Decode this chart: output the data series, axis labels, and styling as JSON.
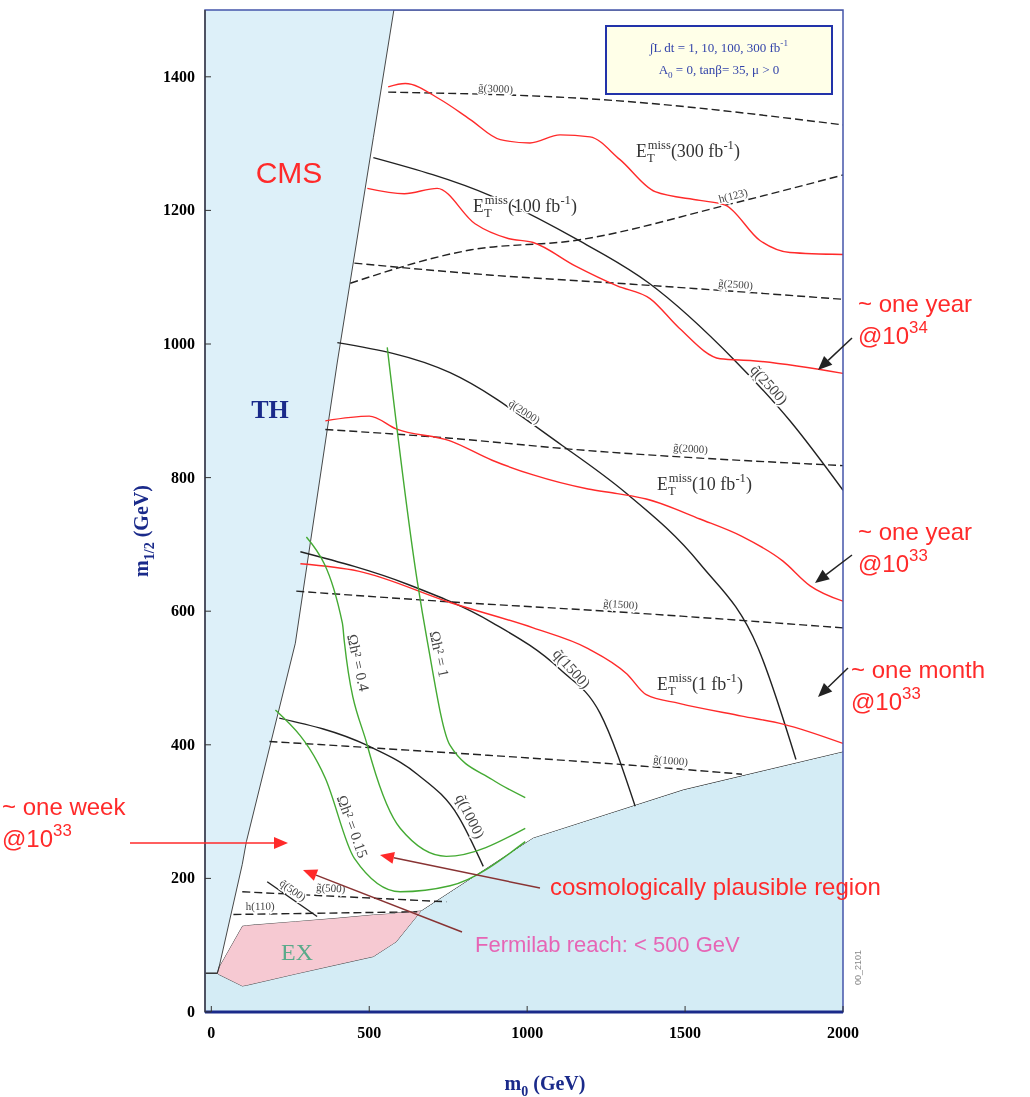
{
  "chart_data": {
    "type": "line",
    "xlabel": "m$_{0}$ (GeV)",
    "ylabel": "m$_{1/2}$ (GeV)",
    "xlim": [
      -20,
      2000
    ],
    "ylim": [
      0,
      1500
    ],
    "xticks": [
      0,
      500,
      1000,
      1500,
      2000
    ],
    "yticks": [
      0,
      200,
      400,
      600,
      800,
      1000,
      1200,
      1400
    ],
    "line_style": "solid",
    "stacked": true,
    "series": [
      {
        "type": "area",
        "color": "#d4ecf5",
        "x": [
          -20,
          19,
          25,
          98,
          111,
          266,
          399,
          513,
          578,
          585,
          665,
          1019,
          1494,
          2000
        ],
        "values": [
          58,
          58,
          56,
          39,
          40,
          57,
          71,
          83,
          103,
          105,
          152,
          261,
          333,
          390
        ]
      },
      {
        "type": "area",
        "color": "#f6c9d2",
        "x": [
          -20,
          19,
          25,
          98,
          111,
          266,
          399,
          513,
          578,
          585,
          665,
          1019,
          1494,
          2000
        ],
        "values": [
          0,
          0,
          12,
          90,
          90,
          79,
          70,
          63,
          45,
          44,
          0,
          0,
          0,
          0
        ]
      },
      {
        "type": "area",
        "color": "#ffffff",
        "x": [
          -20,
          19,
          25,
          98,
          111,
          266,
          399,
          513,
          578,
          585,
          665,
          1019,
          1494,
          2000
        ],
        "values": [
          0,
          0,
          0,
          92,
          125,
          416,
          832,
          1163,
          1352,
          1351,
          1348,
          1239,
          1167,
          1110
        ]
      },
      {
        "color": "#222222",
        "line_style": "dashed",
        "x": [
          560,
          1231,
          2000
        ],
        "values": [
          1377,
          1366,
          1328
        ]
      },
      {
        "color": "#222222",
        "line_style": "dashed",
        "x": [
          453,
          889,
          1285,
          1997
        ],
        "values": [
          1121,
          1103,
          1091,
          1067
        ]
      },
      {
        "color": "#222222",
        "line_style": "dashed",
        "x": [
          361,
          756,
          1152,
          2000
        ],
        "values": [
          872,
          859,
          842,
          818
        ]
      },
      {
        "color": "#222222",
        "line_style": "dashed",
        "x": [
          269,
          756,
          1285,
          2000
        ],
        "values": [
          630,
          614,
          599,
          575
        ]
      },
      {
        "color": "#222222",
        "line_style": "dashed",
        "x": [
          184,
          623,
          1285,
          1680
        ],
        "values": [
          405,
          392,
          371,
          356
        ]
      },
      {
        "color": "#222222",
        "line_style": "dashed",
        "x": [
          98,
          744
        ],
        "values": [
          180,
          165
        ]
      },
      {
        "color": "#222222",
        "line_style": "dashed",
        "x": [
          70,
          652
        ],
        "values": [
          146,
          150
        ]
      },
      {
        "color": "#222222",
        "line_style": "dashed",
        "x": [
          440,
          823,
          1152,
          1639,
          2000
        ],
        "values": [
          1091,
          1141,
          1155,
          1209,
          1253
        ]
      },
      {
        "color": "#222222",
        "x": [
          513,
          889,
          1152,
          1383,
          1658,
          1832,
          2000
        ],
        "values": [
          1279,
          1221,
          1158,
          1092,
          975,
          885,
          781
        ]
      },
      {
        "color": "#222222",
        "x": [
          399,
          756,
          1111,
          1310,
          1547,
          1731,
          1851
        ],
        "values": [
          1002,
          957,
          848,
          778,
          671,
          545,
          378
        ]
      },
      {
        "color": "#222222",
        "x": [
          282,
          623,
          889,
          1104,
          1231,
          1342
        ],
        "values": [
          689,
          640,
          583,
          513,
          447,
          308
        ]
      },
      {
        "color": "#222222",
        "x": [
          215,
          494,
          652,
          782,
          861
        ],
        "values": [
          440,
          399,
          356,
          293,
          218
        ]
      },
      {
        "color": "#222222",
        "x": [
          177,
          335
        ],
        "values": [
          195,
          143
        ]
      },
      {
        "color": "#ff2a2a",
        "x": [
          560,
          614,
          725,
          820,
          915,
          1009,
          1104,
          1199,
          1294,
          1405,
          1547,
          1627,
          1737,
          1832,
          2000
        ],
        "values": [
          1385,
          1390,
          1366,
          1336,
          1306,
          1301,
          1313,
          1310,
          1276,
          1228,
          1215,
          1208,
          1155,
          1137,
          1134
        ]
      },
      {
        "color": "#ff2a2a",
        "x": [
          494,
          611,
          715,
          835,
          940,
          1019,
          1152,
          1285,
          1389,
          1481,
          1611,
          1715,
          2000
        ],
        "values": [
          1233,
          1225,
          1233,
          1180,
          1158,
          1152,
          1117,
          1087,
          1068,
          1024,
          978,
          975,
          956
        ]
      },
      {
        "color": "#ff2a2a",
        "x": [
          361,
          500,
          585,
          756,
          889,
          1019,
          1193,
          1285,
          1377,
          1547,
          1680,
          1810,
          1896,
          2000
        ],
        "values": [
          885,
          892,
          873,
          855,
          826,
          804,
          783,
          776,
          768,
          738,
          712,
          675,
          638,
          615
        ]
      },
      {
        "color": "#ff2a2a",
        "x": [
          282,
          465,
          756,
          1019,
          1193,
          1316,
          1377,
          1481,
          1680,
          1810,
          2000
        ],
        "values": [
          671,
          660,
          613,
          575,
          544,
          506,
          475,
          462,
          443,
          431,
          402
        ]
      },
      {
        "color": "#44aa33",
        "x": [
          557,
          652,
          684,
          756,
          889,
          994
        ],
        "values": [
          995,
          645,
          555,
          399,
          348,
          321
        ]
      },
      {
        "color": "#44aa33",
        "x": [
          301,
          415,
          421,
          494,
          598,
          744,
          994
        ],
        "values": [
          711,
          582,
          555,
          399,
          275,
          233,
          275
        ]
      },
      {
        "color": "#44aa33",
        "x": [
          203,
          361,
          453,
          598,
          756,
          994
        ],
        "values": [
          452,
          350,
          230,
          180,
          189,
          255
        ]
      }
    ],
    "annotations": [
      "CMS",
      "TH",
      "EX",
      "∫L dt = 1, 10, 100, 300 fb$^{-1}$\nA$_{0}$ = 0, tanβ= 35, μ > 0",
      "E$_{T}$$^{miss}$(300 fb$^{-1}$)",
      "E$_{T}$$^{miss}$(100 fb$^{-1}$)",
      "E$_{T}$$^{miss}$(10 fb$^{-1}$)",
      "E$_{T}$$^{miss}$(1 fb$^{-1}$)",
      {
        "text": "g̃(3000)",
        "x": 899,
        "y": 1371
      },
      {
        "text": "h(123)",
        "x": 1658,
        "y": 1211
      },
      {
        "text": "g̃(2500)",
        "x": 1658,
        "y": 1078
      },
      {
        "text": "q̃(2500)",
        "x": 1745,
        "y": 930
      },
      {
        "text": "q̃(2000)",
        "x": 978,
        "y": 889
      },
      {
        "text": "g̃(2000)",
        "x": 1516,
        "y": 832
      },
      {
        "text": "g̃(1500)",
        "x": 1294,
        "y": 599
      },
      {
        "text": "q̃(1500)",
        "x": 1120,
        "y": 505
      },
      {
        "text": "g̃(1000)",
        "x": 1452,
        "y": 365
      },
      {
        "text": "q̃(1000)",
        "x": 794,
        "y": 287
      },
      {
        "text": "g̃(500)",
        "x": 377,
        "y": 174
      },
      {
        "text": "q̃(500)",
        "x": 244,
        "y": 173
      },
      {
        "text": "h(110)",
        "x": 155,
        "y": 147
      },
      {
        "text": "Ωh² = 1",
        "x": 694,
        "y": 533
      },
      {
        "text": "Ωh² = 0.4",
        "x": 437,
        "y": 520
      },
      {
        "text": "Ωh² = 0.15",
        "x": 420,
        "y": 273
      },
      "~ one year\n@10$^{34}$",
      "~ one year\n@10$^{33}$",
      "~ one month\n@10$^{33}$",
      "~ one week\n@10$^{33}$",
      "cosmologically plausible region",
      "Fermilab reach: < 500 GeV",
      "00_2101"
    ]
  }
}
